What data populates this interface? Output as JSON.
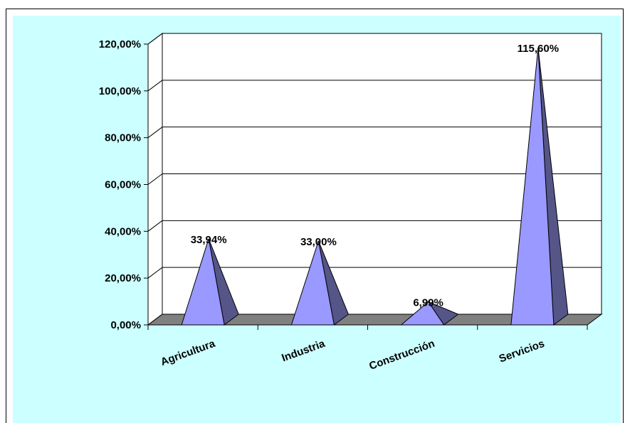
{
  "colors": {
    "chart_area": "#ccffff",
    "plot_area": "#ffffff",
    "floor": "#808080",
    "pyramid_front": "#9999ff",
    "pyramid_side": "#555588",
    "gridline": "#000000"
  },
  "chart_data": {
    "type": "bar",
    "shape": "3d-pyramid",
    "categories": [
      "Agricultura",
      "Industria",
      "Construcción",
      "Servicios"
    ],
    "values": [
      33.94,
      33.0,
      6.99,
      115.6
    ],
    "data_labels": [
      "33,94%",
      "33,00%",
      "6,99%",
      "115,60%"
    ],
    "ylim": [
      0,
      120
    ],
    "yticks": [
      0,
      20,
      40,
      60,
      80,
      100,
      120
    ],
    "ytick_labels": [
      "0,00%",
      "20,00%",
      "40,00%",
      "60,00%",
      "80,00%",
      "100,00%",
      "120,00%"
    ],
    "grid": true,
    "legend": "none",
    "title": "",
    "xlabel": "",
    "ylabel": ""
  }
}
